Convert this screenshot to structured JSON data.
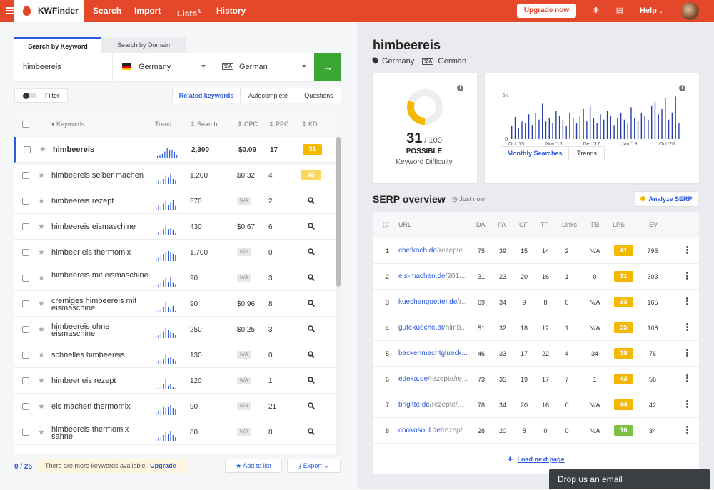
{
  "topbar": {
    "brand": "KWFinder",
    "nav": [
      {
        "label": "Search",
        "badge": ""
      },
      {
        "label": "Import",
        "badge": ""
      },
      {
        "label": "Lists",
        "badge": "0"
      },
      {
        "label": "History",
        "badge": ""
      }
    ],
    "upgrade_label": "Upgrade now",
    "help_label": "Help"
  },
  "search": {
    "tabs": [
      "Search by Keyword",
      "Search by Domain"
    ],
    "keyword": "himbeereis",
    "location": "Germany",
    "language": "German",
    "language_icon": "文A",
    "go_icon": "→"
  },
  "filter_label": "Filter",
  "subtabs": [
    "Related keywords",
    "Autocomplete",
    "Questions"
  ],
  "table": {
    "columns": [
      "Keywords",
      "Trend",
      "Search",
      "CPC",
      "PPC",
      "KD"
    ],
    "rows": [
      {
        "keyword": "himbeereis",
        "search": "2,300",
        "cpc": "$0.09",
        "ppc": "17",
        "kd": "31",
        "kd_color": "#f5b800",
        "trend": [
          2,
          3,
          4,
          6,
          9,
          7,
          8,
          6,
          3
        ]
      },
      {
        "keyword": "himbeereis selber machen",
        "search": "1,200",
        "cpc": "$0.32",
        "ppc": "4",
        "kd": "33",
        "kd_color": "#fbd860",
        "trend": [
          1,
          2,
          2,
          3,
          5,
          4,
          6,
          3,
          2
        ]
      },
      {
        "keyword": "himbeereis rezept",
        "search": "570",
        "cpc": "N/A",
        "ppc": "2",
        "kd": "",
        "kd_color": "",
        "trend": [
          2,
          3,
          2,
          5,
          7,
          4,
          6,
          8,
          3
        ]
      },
      {
        "keyword": "himbeereis eismaschine",
        "search": "430",
        "cpc": "$0.67",
        "ppc": "6",
        "kd": "",
        "kd_color": "",
        "trend": [
          1,
          3,
          2,
          5,
          8,
          5,
          6,
          4,
          2
        ]
      },
      {
        "keyword": "himbeer eis thermomix",
        "search": "1,700",
        "cpc": "N/A",
        "ppc": "0",
        "kd": "",
        "kd_color": "",
        "trend": [
          2,
          3,
          4,
          5,
          6,
          7,
          6,
          5,
          4
        ]
      },
      {
        "keyword": "himbeereis mit eismaschine",
        "search": "90",
        "cpc": "N/A",
        "ppc": "3",
        "kd": "",
        "kd_color": "",
        "trend": [
          1,
          2,
          3,
          5,
          7,
          4,
          8,
          3,
          2
        ]
      },
      {
        "keyword": "cremiges himbeereis mit eismaschine",
        "search": "90",
        "cpc": "$0.96",
        "ppc": "8",
        "kd": "",
        "kd_color": "",
        "trend": [
          1,
          1,
          2,
          3,
          6,
          3,
          2,
          4,
          1
        ]
      },
      {
        "keyword": "himbeereis ohne eismaschine",
        "search": "250",
        "cpc": "$0.25",
        "ppc": "3",
        "kd": "",
        "kd_color": "",
        "trend": [
          1,
          2,
          3,
          4,
          6,
          5,
          4,
          3,
          2
        ]
      },
      {
        "keyword": "schnelles himbeereis",
        "search": "130",
        "cpc": "N/A",
        "ppc": "0",
        "kd": "",
        "kd_color": "",
        "trend": [
          1,
          2,
          2,
          3,
          7,
          4,
          5,
          3,
          2
        ]
      },
      {
        "keyword": "himbeer eis rezept",
        "search": "120",
        "cpc": "N/A",
        "ppc": "1",
        "kd": "",
        "kd_color": "",
        "trend": [
          1,
          1,
          2,
          4,
          8,
          3,
          4,
          2,
          1
        ]
      },
      {
        "keyword": "eis machen thermomix",
        "search": "90",
        "cpc": "N/A",
        "ppc": "21",
        "kd": "",
        "kd_color": "",
        "trend": [
          2,
          3,
          4,
          6,
          5,
          6,
          7,
          5,
          4
        ]
      },
      {
        "keyword": "himbeereis thermomix sahne",
        "search": "80",
        "cpc": "N/A",
        "ppc": "8",
        "kd": "",
        "kd_color": "",
        "trend": [
          1,
          2,
          3,
          4,
          6,
          5,
          7,
          4,
          3
        ]
      }
    ]
  },
  "footer": {
    "count": "0 / 25",
    "notice": "There are more keywords available.",
    "upgrade_link": "Upgrade",
    "add_to_list": "Add to list",
    "export": "Export"
  },
  "detail": {
    "keyword": "himbeereis",
    "location": "Germany",
    "language": "German",
    "kd_value": "31",
    "kd_max": "/ 100",
    "kd_level": "POSSIBLE",
    "kd_label": "Keyword Difficulty",
    "kd_fraction": 0.31
  },
  "chart_data": {
    "type": "bar",
    "title": "",
    "ytick": "5k",
    "ytick0": "0",
    "xticks": [
      "Oct '15",
      "Nov '16",
      "Dec '17",
      "Jan '19",
      "Oct '20"
    ],
    "values": [
      1.5,
      2.5,
      1.2,
      2.0,
      1.8,
      2.8,
      1.6,
      3.0,
      2.2,
      4.0,
      2.0,
      2.4,
      1.8,
      3.2,
      2.6,
      2.2,
      1.5,
      3.0,
      2.4,
      1.8,
      2.6,
      3.4,
      2.0,
      3.8,
      2.4,
      1.8,
      2.8,
      2.2,
      3.2,
      2.6,
      1.6,
      2.4,
      3.0,
      2.2,
      1.8,
      3.6,
      2.4,
      2.0,
      3.0,
      2.6,
      2.2,
      3.8,
      4.2,
      2.8,
      3.4,
      4.6,
      2.2,
      3.0,
      4.8,
      1.8
    ],
    "ylim": [
      0,
      5
    ],
    "tabs": [
      "Monthly Searches",
      "Trends"
    ]
  },
  "serp": {
    "title": "SERP overview",
    "time": "Just now",
    "analyze_label": "Analyze SERP",
    "columns": [
      "URL",
      "DA",
      "PA",
      "CF",
      "TF",
      "Links",
      "FB",
      "LPS",
      "EV"
    ],
    "rows": [
      {
        "n": "1",
        "domain": "chefkoch.de",
        "path": "/rezepte...",
        "da": "75",
        "pa": "39",
        "cf": "15",
        "tf": "14",
        "links": "2",
        "fb": "N/A",
        "lps": "41",
        "lps_color": "#f5b800",
        "ev": "795"
      },
      {
        "n": "2",
        "domain": "eis-machen.de",
        "path": "/201...",
        "da": "31",
        "pa": "23",
        "cf": "20",
        "tf": "16",
        "links": "1",
        "fb": "0",
        "lps": "31",
        "lps_color": "#f5b800",
        "ev": "303"
      },
      {
        "n": "3",
        "domain": "kuechengoetter.de",
        "path": "/r...",
        "da": "69",
        "pa": "34",
        "cf": "9",
        "tf": "8",
        "links": "0",
        "fb": "N/A",
        "lps": "33",
        "lps_color": "#f5b800",
        "ev": "165"
      },
      {
        "n": "4",
        "domain": "gutekueche.at",
        "path": "/himb...",
        "da": "51",
        "pa": "32",
        "cf": "18",
        "tf": "12",
        "links": "1",
        "fb": "N/A",
        "lps": "35",
        "lps_color": "#f5b800",
        "ev": "108"
      },
      {
        "n": "5",
        "domain": "backenmachtglueck...",
        "path": "",
        "da": "46",
        "pa": "33",
        "cf": "17",
        "tf": "22",
        "links": "4",
        "fb": "34",
        "lps": "38",
        "lps_color": "#f5b800",
        "ev": "76"
      },
      {
        "n": "6",
        "domain": "edeka.de",
        "path": "/rezepte/re...",
        "da": "73",
        "pa": "35",
        "cf": "19",
        "tf": "17",
        "links": "7",
        "fb": "1",
        "lps": "43",
        "lps_color": "#f5b800",
        "ev": "56"
      },
      {
        "n": "7",
        "domain": "brigitte.de",
        "path": "/rezepte/...",
        "da": "78",
        "pa": "34",
        "cf": "20",
        "tf": "16",
        "links": "0",
        "fb": "N/A",
        "lps": "44",
        "lps_color": "#f5b800",
        "ev": "42"
      },
      {
        "n": "8",
        "domain": "cooknsoul.de",
        "path": "/rezept...",
        "da": "28",
        "pa": "20",
        "cf": "8",
        "tf": "0",
        "links": "0",
        "fb": "N/A",
        "lps": "16",
        "lps_color": "#7cc242",
        "ev": "34"
      }
    ],
    "load_next": "Load next page"
  },
  "email_label": "Drop us an email"
}
